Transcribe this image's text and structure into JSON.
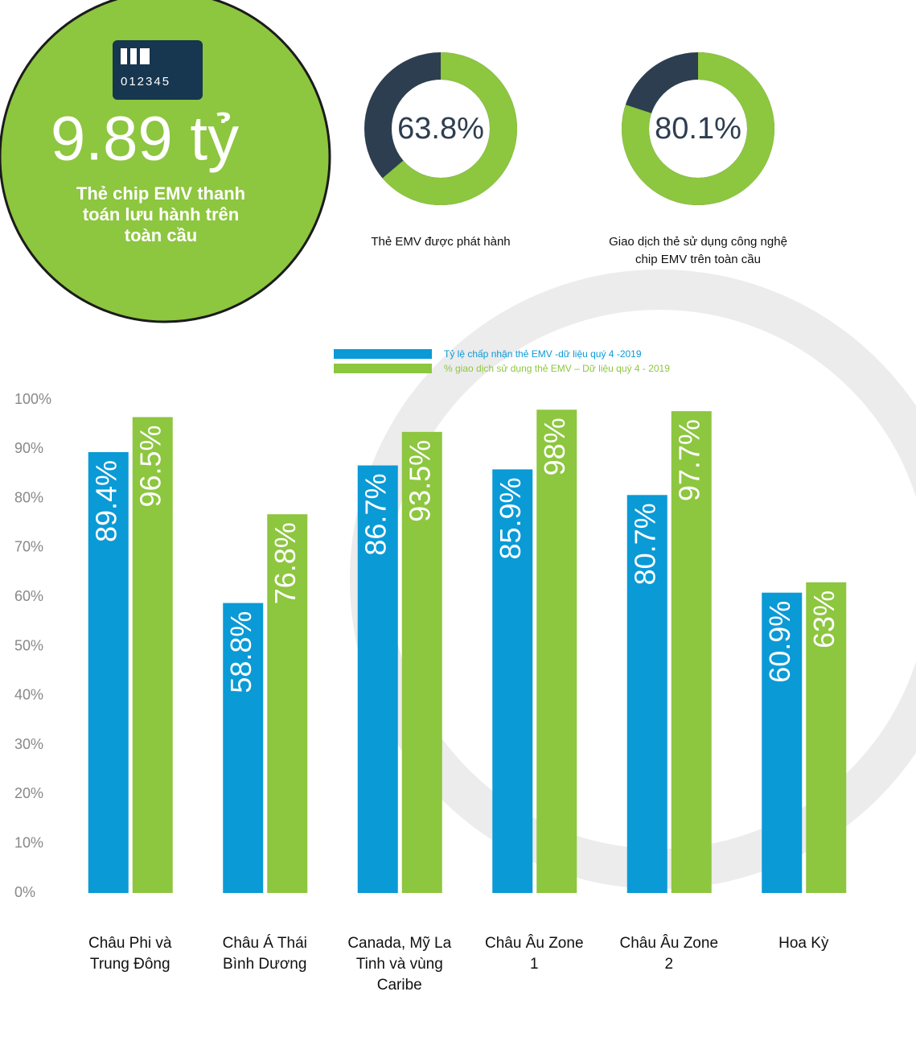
{
  "highlight": {
    "card_number": "012345",
    "value": "9.89 tỷ",
    "caption": "Thẻ chip EMV thanh toán lưu hành trên toàn cầu"
  },
  "chart_data": [
    {
      "type": "donut",
      "values": [
        63.8
      ],
      "value_labels": [
        "63.8%"
      ],
      "color": "#8dc63f",
      "track_color": "#2d3e50",
      "caption": "Thẻ EMV được phát hành"
    },
    {
      "type": "donut",
      "values": [
        80.1
      ],
      "value_labels": [
        "80.1%"
      ],
      "color": "#8dc63f",
      "track_color": "#2d3e50",
      "caption": "Giao dịch thẻ sử dụng công nghệ chip EMV trên toàn cầu"
    },
    {
      "type": "bar",
      "categories": [
        "Châu Phi và Trung Đông",
        "Châu Á Thái Bình Dương",
        "Canada, Mỹ La Tinh và vùng Caribe",
        "Châu Âu Zone 1",
        "Châu Âu Zone 2",
        "Hoa Kỳ"
      ],
      "series": [
        {
          "name": "Tỷ lệ chấp nhận thẻ EMV -dữ liệu quý 4 -2019",
          "color": "#0a9ad6",
          "values": [
            89.4,
            58.8,
            86.7,
            85.9,
            80.7,
            60.9
          ],
          "value_labels": [
            "89.4%",
            "58.8%",
            "86.7%",
            "85.9%",
            "80.7%",
            "60.9%"
          ]
        },
        {
          "name": "% giao dịch sử dụng thẻ EMV – Dữ liệu quý 4 - 2019",
          "color": "#8dc63f",
          "values": [
            96.5,
            76.8,
            93.5,
            98,
            97.7,
            63
          ],
          "value_labels": [
            "96.5%",
            "76.8%",
            "93.5%",
            "98%",
            "97.7%",
            "63%"
          ]
        }
      ],
      "ylim": [
        0,
        100
      ],
      "yticks": [
        {
          "value": 0,
          "label": "0%"
        },
        {
          "value": 10,
          "label": "10%"
        },
        {
          "value": 20,
          "label": "20%"
        },
        {
          "value": 30,
          "label": "30%"
        },
        {
          "value": 40,
          "label": "40%"
        },
        {
          "value": 50,
          "label": "50%"
        },
        {
          "value": 60,
          "label": "60%"
        },
        {
          "value": 70,
          "label": "70%"
        },
        {
          "value": 80,
          "label": "80%"
        },
        {
          "value": 90,
          "label": "90%"
        },
        {
          "value": 100,
          "label": "100%"
        }
      ]
    }
  ]
}
